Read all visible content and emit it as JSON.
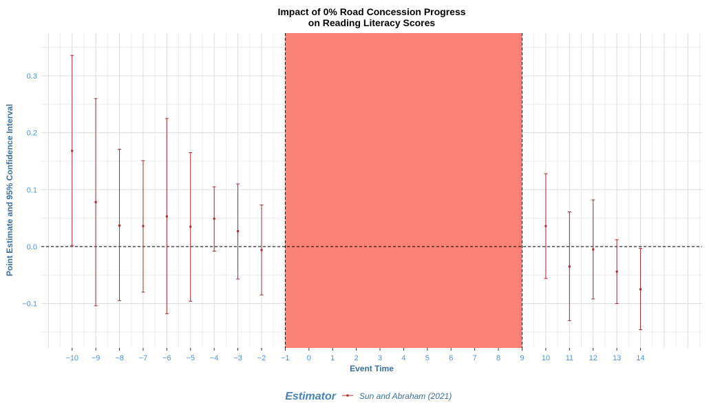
{
  "chart_data": {
    "type": "errorbar",
    "title_line1": "Impact of 0% Road Concession Progress",
    "title_line2": "on Reading Literacy Scores",
    "xlabel": "Event Time",
    "ylabel": "Point Estimate and 95% Confidence Interval",
    "xlim": [
      -11.3,
      16.6
    ],
    "ylim": [
      -0.178,
      0.375
    ],
    "x_ticks": [
      -10,
      -9,
      -8,
      -7,
      -6,
      -5,
      -4,
      -3,
      -2,
      -1,
      0,
      1,
      2,
      3,
      4,
      5,
      6,
      7,
      8,
      9,
      10,
      11,
      12,
      13,
      14
    ],
    "x_tick_labels": [
      "−10",
      "−9",
      "−8",
      "−7",
      "−6",
      "−5",
      "−4",
      "−3",
      "−2",
      "−1",
      "0",
      "1",
      "2",
      "3",
      "4",
      "5",
      "6",
      "7",
      "8",
      "9",
      "10",
      "11",
      "12",
      "13",
      "14"
    ],
    "y_ticks": [
      -0.1,
      0.0,
      0.1,
      0.2,
      0.3
    ],
    "y_tick_labels": [
      "−0.1",
      "0.0",
      "0.1",
      "0.2",
      "0.3"
    ],
    "shaded_region": {
      "x_start": -1,
      "x_end": 9,
      "color": "#fa8072"
    },
    "reference_line_y": 0,
    "grid": true,
    "legend_position": "bottom",
    "legend_title": "Estimator",
    "series": [
      {
        "name": "Sun and Abraham (2021)",
        "color": "#a52a2a",
        "points": [
          {
            "x": -10,
            "estimate": 0.168,
            "lower": 0.002,
            "upper": 0.336
          },
          {
            "x": -9,
            "estimate": 0.078,
            "lower": -0.104,
            "upper": 0.26
          },
          {
            "x": -8,
            "estimate": 0.037,
            "lower": -0.095,
            "upper": 0.171
          },
          {
            "x": -7,
            "estimate": 0.036,
            "lower": -0.08,
            "upper": 0.151
          },
          {
            "x": -6,
            "estimate": 0.053,
            "lower": -0.118,
            "upper": 0.225
          },
          {
            "x": -5,
            "estimate": 0.035,
            "lower": -0.096,
            "upper": 0.165
          },
          {
            "x": -4,
            "estimate": 0.049,
            "lower": -0.008,
            "upper": 0.105
          },
          {
            "x": -3,
            "estimate": 0.027,
            "lower": -0.057,
            "upper": 0.11
          },
          {
            "x": -2,
            "estimate": -0.006,
            "lower": -0.085,
            "upper": 0.073
          },
          {
            "x": 10,
            "estimate": 0.036,
            "lower": -0.056,
            "upper": 0.128
          },
          {
            "x": 11,
            "estimate": -0.035,
            "lower": -0.13,
            "upper": 0.061
          },
          {
            "x": 12,
            "estimate": -0.005,
            "lower": -0.092,
            "upper": 0.082
          },
          {
            "x": 13,
            "estimate": -0.044,
            "lower": -0.1,
            "upper": 0.012
          },
          {
            "x": 14,
            "estimate": -0.075,
            "lower": -0.146,
            "upper": -0.003
          }
        ]
      }
    ]
  }
}
